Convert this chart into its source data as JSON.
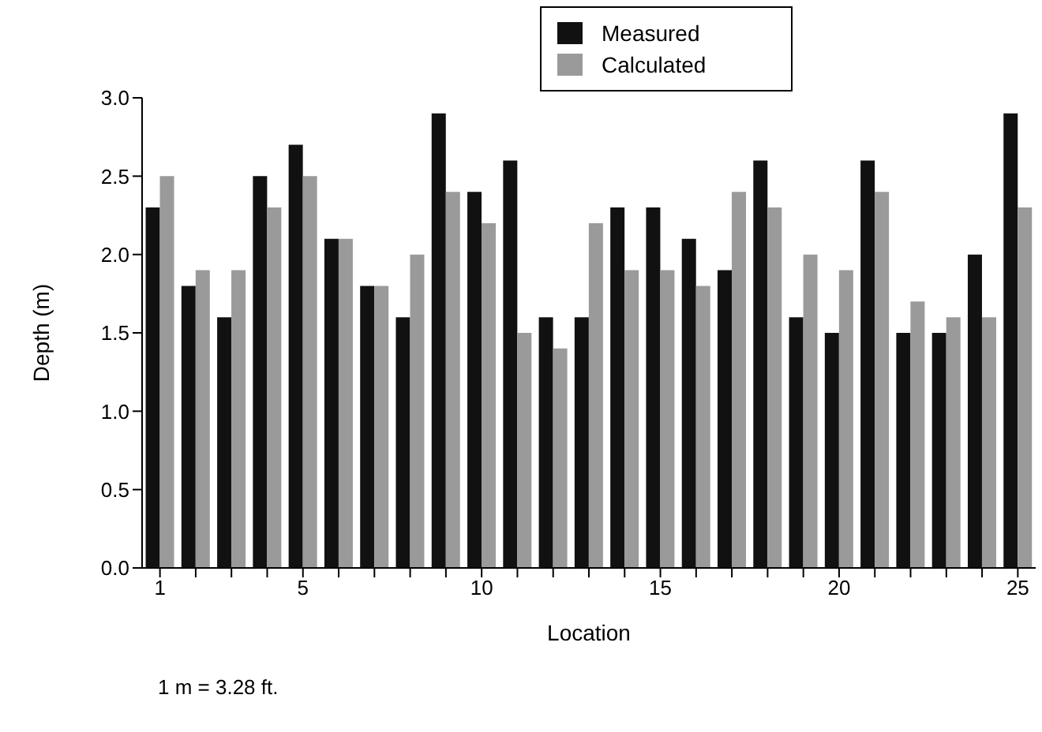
{
  "chart_data": {
    "type": "bar",
    "xlabel": "Location",
    "ylabel": "Depth (m)",
    "categories": [
      "1",
      null,
      null,
      null,
      "5",
      null,
      null,
      null,
      null,
      "10",
      null,
      null,
      null,
      null,
      "15",
      null,
      null,
      null,
      null,
      "20",
      null,
      null,
      null,
      null,
      "25"
    ],
    "series": [
      {
        "name": "Measured",
        "color": "#111111",
        "values": [
          2.3,
          1.8,
          1.6,
          2.5,
          2.7,
          2.1,
          1.8,
          1.6,
          2.9,
          2.4,
          2.6,
          1.6,
          1.6,
          2.3,
          2.3,
          2.1,
          1.9,
          2.6,
          1.6,
          1.5,
          2.6,
          1.5,
          1.5,
          2.0,
          2.9
        ]
      },
      {
        "name": "Calculated",
        "color": "#9a9a9a",
        "values": [
          2.5,
          1.9,
          1.9,
          2.3,
          2.5,
          2.1,
          1.8,
          2.0,
          2.4,
          2.2,
          1.5,
          1.4,
          2.2,
          1.9,
          1.9,
          1.8,
          2.4,
          2.3,
          2.0,
          1.9,
          2.4,
          1.7,
          1.6,
          1.6,
          2.3
        ]
      }
    ],
    "ylim": [
      0,
      3
    ],
    "yticks": [
      {
        "value": 0,
        "label": "0.0"
      },
      {
        "value": 0.5,
        "label": "0.5"
      },
      {
        "value": 1,
        "label": "1.0"
      },
      {
        "value": 1.5,
        "label": "1.5"
      },
      {
        "value": 2,
        "label": "2.0"
      },
      {
        "value": 2.5,
        "label": "2.5"
      },
      {
        "value": 3,
        "label": "3.0"
      }
    ],
    "legend": "top right",
    "annotations": [
      "1 m = 3.28 ft."
    ]
  }
}
